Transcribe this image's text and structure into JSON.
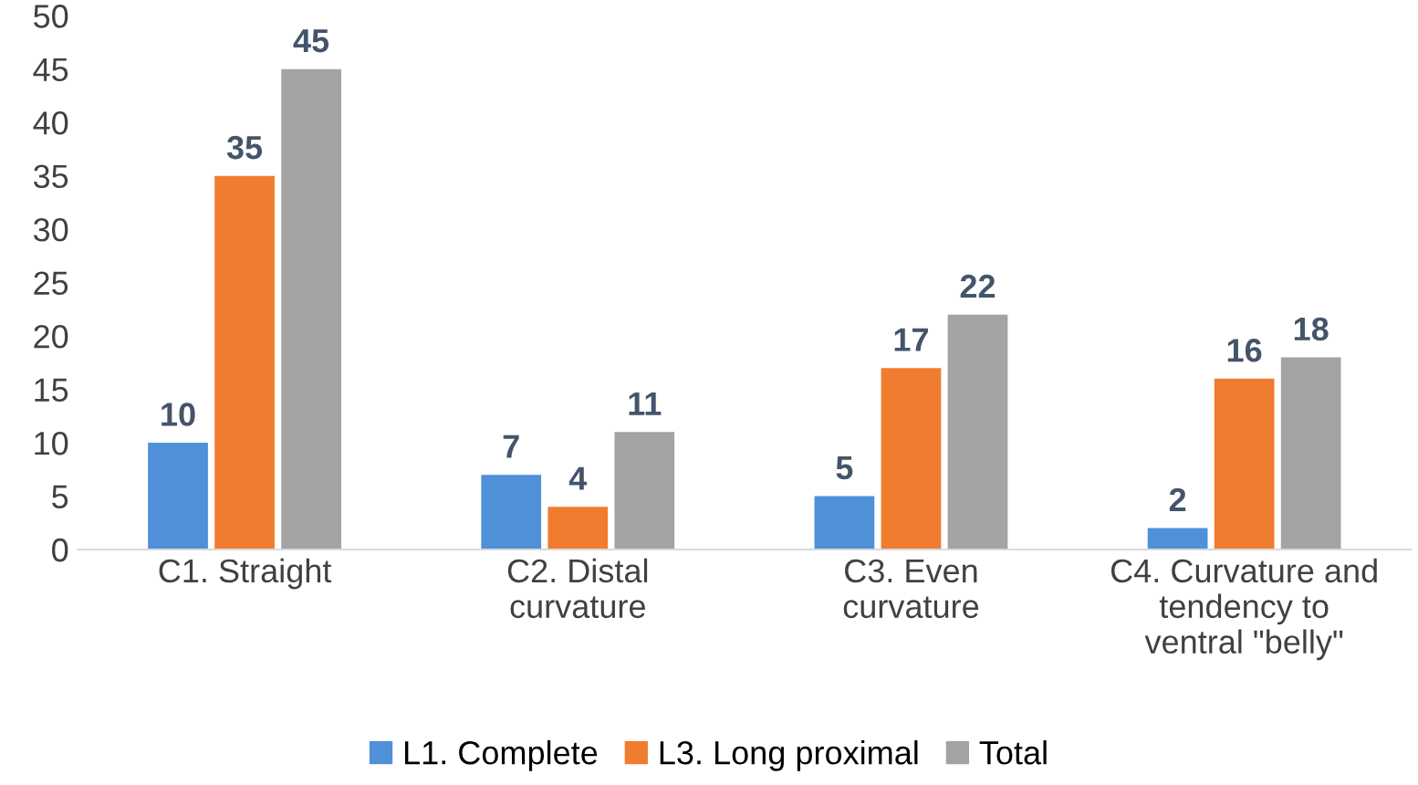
{
  "chart_data": {
    "type": "bar",
    "categories": [
      "C1. Straight",
      "C2. Distal\ncurvature",
      "C3. Even\ncurvature",
      "C4. Curvature and\ntendency to\nventral \"belly\""
    ],
    "series": [
      {
        "name": "L1. Complete",
        "color": "#4f90d8",
        "values": [
          10,
          7,
          5,
          2
        ]
      },
      {
        "name": "L3. Long proximal",
        "color": "#f07c30",
        "values": [
          35,
          4,
          17,
          16
        ]
      },
      {
        "name": "Total",
        "color": "#a3a3a3",
        "values": [
          45,
          11,
          22,
          18
        ]
      }
    ],
    "ylim": [
      0,
      50
    ],
    "yticks": [
      0,
      5,
      10,
      15,
      20,
      25,
      30,
      35,
      40,
      45,
      50
    ],
    "data_labels": true,
    "grid": false,
    "legend": "bottom"
  }
}
